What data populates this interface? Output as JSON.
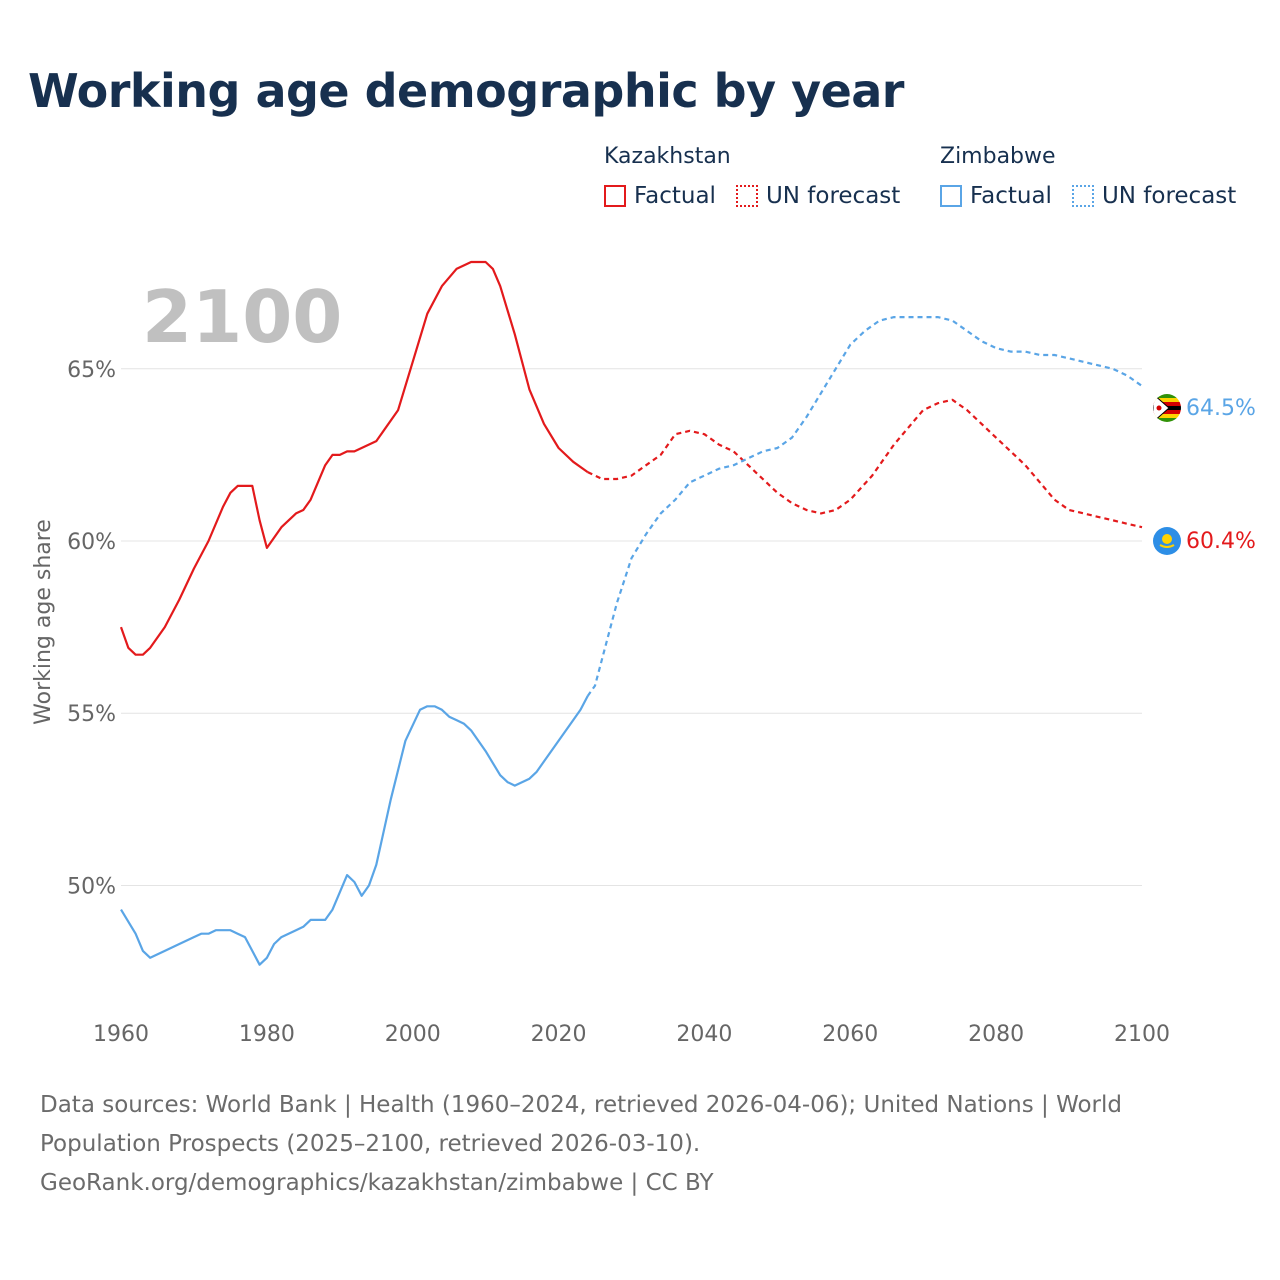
{
  "title": "Working age demographic by year",
  "legend": {
    "groups": [
      {
        "country": "Kazakhstan",
        "factual_label": "Factual",
        "forecast_label": "UN forecast",
        "color": "#e31a1c"
      },
      {
        "country": "Zimbabwe",
        "factual_label": "Factual",
        "forecast_label": "UN forecast",
        "color": "#5aa5e6"
      }
    ]
  },
  "year_watermark": "2100",
  "sources": {
    "line1": "Data sources: World Bank | Health (1960–2024, retrieved 2026-04-06); United Nations | World",
    "line2": "Population Prospects (2025–2100, retrieved 2026-03-10).",
    "line3": "GeoRank.org/demographics/kazakhstan/zimbabwe | CC BY"
  },
  "chart_data": {
    "type": "line",
    "title": "Working age demographic by year",
    "xlabel": "",
    "ylabel": "Working age share",
    "xlim": [
      1960,
      2100
    ],
    "ylim": [
      46.5,
      69.0
    ],
    "x_ticks": [
      1960,
      1980,
      2000,
      2020,
      2040,
      2060,
      2080,
      2100
    ],
    "x_tick_labels": [
      "1960",
      "1980",
      "2000",
      "2020",
      "2040",
      "2060",
      "2080",
      "2100"
    ],
    "y_ticks": [
      50,
      55,
      60,
      65
    ],
    "y_tick_labels": [
      "50%",
      "55%",
      "60%",
      "65%"
    ],
    "grid": true,
    "forecast_start_year": 2024,
    "series": [
      {
        "name": "Kazakhstan",
        "color": "#e31a1c",
        "end_label": "60.4%",
        "x": [
          1960,
          1961,
          1962,
          1963,
          1964,
          1966,
          1968,
          1970,
          1972,
          1974,
          1975,
          1976,
          1977,
          1978,
          1979,
          1980,
          1982,
          1984,
          1985,
          1986,
          1988,
          1989,
          1990,
          1991,
          1992,
          1995,
          1998,
          2000,
          2002,
          2004,
          2006,
          2008,
          2009,
          2010,
          2011,
          2012,
          2014,
          2016,
          2018,
          2020,
          2022,
          2024,
          2026,
          2028,
          2030,
          2032,
          2034,
          2036,
          2038,
          2040,
          2042,
          2044,
          2046,
          2048,
          2050,
          2052,
          2054,
          2056,
          2058,
          2060,
          2063,
          2066,
          2068,
          2070,
          2072,
          2074,
          2076,
          2078,
          2080,
          2082,
          2084,
          2086,
          2088,
          2090,
          2092,
          2094,
          2096,
          2098,
          2100
        ],
        "y": [
          57.5,
          56.9,
          56.7,
          56.7,
          56.9,
          57.5,
          58.3,
          59.2,
          60.0,
          61.0,
          61.4,
          61.6,
          61.6,
          61.6,
          60.6,
          59.8,
          60.4,
          60.8,
          60.9,
          61.2,
          62.2,
          62.5,
          62.5,
          62.6,
          62.6,
          62.9,
          63.8,
          65.2,
          66.6,
          67.4,
          67.9,
          68.1,
          68.1,
          68.1,
          67.9,
          67.4,
          66.0,
          64.4,
          63.4,
          62.7,
          62.3,
          62.0,
          61.8,
          61.8,
          61.9,
          62.2,
          62.5,
          63.1,
          63.2,
          63.1,
          62.8,
          62.6,
          62.2,
          61.8,
          61.4,
          61.1,
          60.9,
          60.8,
          60.9,
          61.2,
          61.9,
          62.8,
          63.3,
          63.8,
          64.0,
          64.1,
          63.8,
          63.4,
          63.0,
          62.6,
          62.2,
          61.7,
          61.2,
          60.9,
          60.8,
          60.7,
          60.6,
          60.5,
          60.4
        ]
      },
      {
        "name": "Zimbabwe",
        "color": "#5aa5e6",
        "end_label": "64.5%",
        "x": [
          1960,
          1962,
          1963,
          1964,
          1966,
          1968,
          1970,
          1971,
          1972,
          1973,
          1974,
          1975,
          1976,
          1977,
          1978,
          1979,
          1980,
          1981,
          1982,
          1984,
          1985,
          1986,
          1988,
          1989,
          1990,
          1991,
          1992,
          1993,
          1994,
          1995,
          1997,
          1999,
          2001,
          2002,
          2003,
          2004,
          2005,
          2006,
          2007,
          2008,
          2010,
          2012,
          2013,
          2014,
          2016,
          2017,
          2018,
          2020,
          2022,
          2023,
          2024,
          2025,
          2026,
          2028,
          2030,
          2032,
          2034,
          2036,
          2038,
          2040,
          2042,
          2044,
          2046,
          2048,
          2050,
          2052,
          2054,
          2056,
          2058,
          2060,
          2062,
          2064,
          2066,
          2068,
          2070,
          2072,
          2074,
          2076,
          2078,
          2080,
          2082,
          2084,
          2086,
          2088,
          2090,
          2092,
          2094,
          2096,
          2098,
          2100
        ],
        "y": [
          49.3,
          48.6,
          48.1,
          47.9,
          48.1,
          48.3,
          48.5,
          48.6,
          48.6,
          48.7,
          48.7,
          48.7,
          48.6,
          48.5,
          48.1,
          47.7,
          47.9,
          48.3,
          48.5,
          48.7,
          48.8,
          49.0,
          49.0,
          49.3,
          49.8,
          50.3,
          50.1,
          49.7,
          50.0,
          50.6,
          52.5,
          54.2,
          55.1,
          55.2,
          55.2,
          55.1,
          54.9,
          54.8,
          54.7,
          54.5,
          53.9,
          53.2,
          53.0,
          52.9,
          53.1,
          53.3,
          53.6,
          54.2,
          54.8,
          55.1,
          55.5,
          55.8,
          56.6,
          58.2,
          59.5,
          60.2,
          60.8,
          61.2,
          61.7,
          61.9,
          62.1,
          62.2,
          62.4,
          62.6,
          62.7,
          63.0,
          63.6,
          64.3,
          65.0,
          65.7,
          66.1,
          66.4,
          66.5,
          66.5,
          66.5,
          66.5,
          66.4,
          66.1,
          65.8,
          65.6,
          65.5,
          65.5,
          65.4,
          65.4,
          65.3,
          65.2,
          65.1,
          65.0,
          64.8,
          64.5
        ]
      }
    ]
  }
}
